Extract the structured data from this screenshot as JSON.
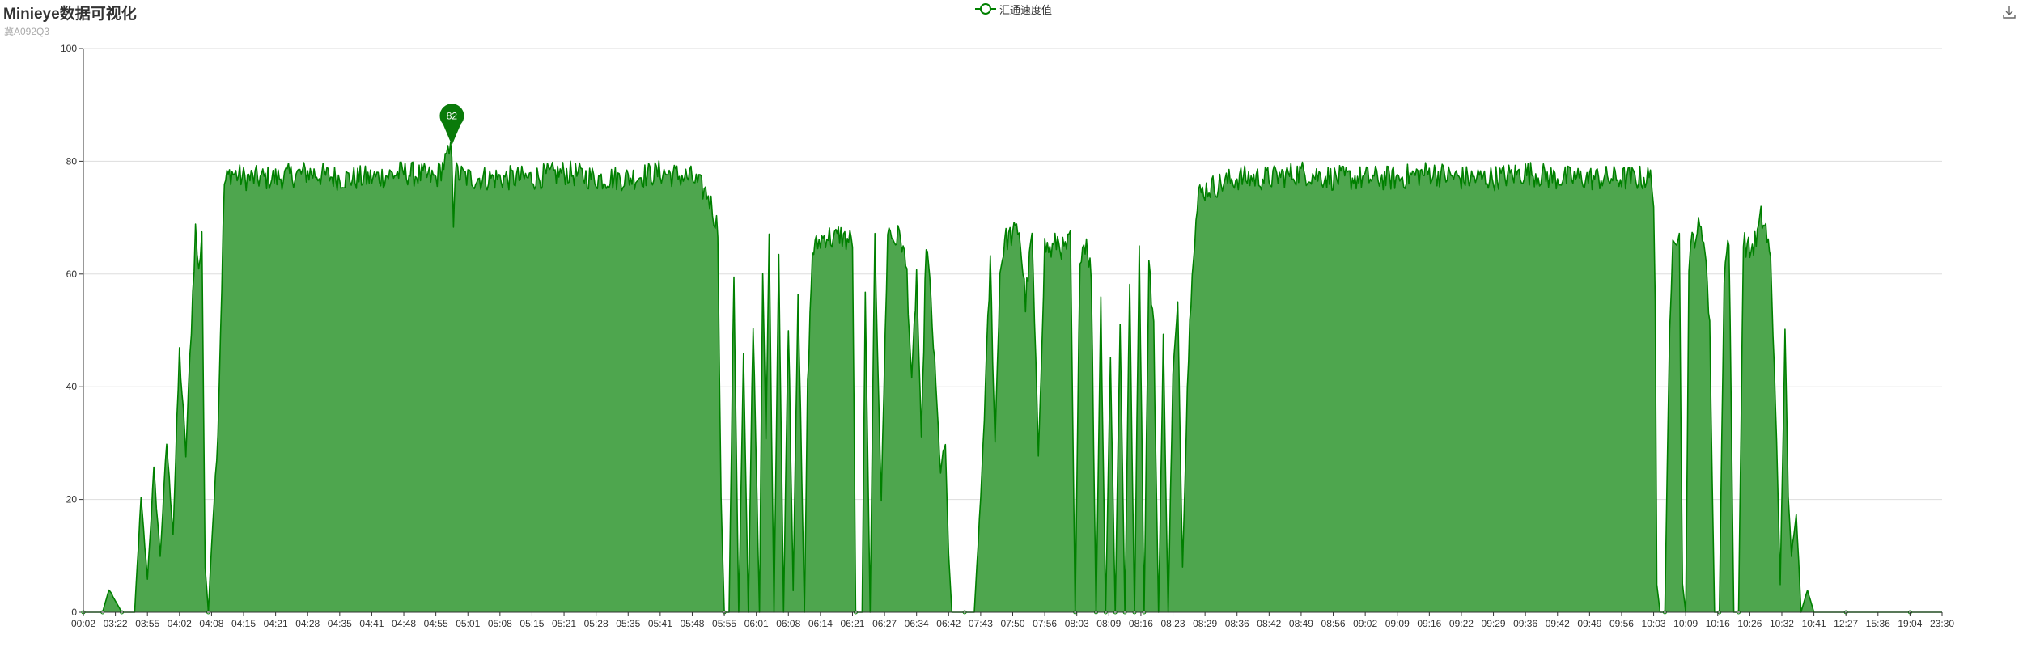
{
  "page": {
    "title": "Minieye数据可视化",
    "subtitle": "冀A092Q3"
  },
  "legend": {
    "label": "汇通速度值"
  },
  "toolbox": {
    "icon": "download-icon"
  },
  "colors": {
    "line": "#008000",
    "area": "#4ea64e",
    "axis": "#333333",
    "grid": "#dddddd",
    "marker": "#0a7a0a"
  },
  "chart_data": {
    "type": "area",
    "title": "Minieye数据可视化",
    "subtitle": "冀A092Q3",
    "xlabel": "",
    "ylabel": "",
    "ylim": [
      0,
      100
    ],
    "yticks": [
      0,
      20,
      40,
      60,
      80,
      100
    ],
    "grid": true,
    "legend_position": "top-center",
    "x_tick_labels": [
      "00:02",
      "03:22",
      "03:55",
      "04:02",
      "04:08",
      "04:15",
      "04:21",
      "04:28",
      "04:35",
      "04:41",
      "04:48",
      "04:55",
      "05:01",
      "05:08",
      "05:15",
      "05:21",
      "05:28",
      "05:35",
      "05:41",
      "05:48",
      "05:55",
      "06:01",
      "06:08",
      "06:14",
      "06:21",
      "06:27",
      "06:34",
      "06:42",
      "07:43",
      "07:50",
      "07:56",
      "08:03",
      "08:09",
      "08:16",
      "08:23",
      "08:29",
      "08:36",
      "08:42",
      "08:49",
      "08:56",
      "09:02",
      "09:09",
      "09:16",
      "09:22",
      "09:29",
      "09:36",
      "09:42",
      "09:49",
      "09:56",
      "10:03",
      "10:09",
      "10:16",
      "10:26",
      "10:32",
      "10:41",
      "12:27",
      "15:36",
      "19:04",
      "23:30"
    ],
    "series": [
      {
        "name": "汇通速度值",
        "profile": [
          [
            0,
            0
          ],
          [
            0.3,
            0
          ],
          [
            0.6,
            0
          ],
          [
            0.8,
            4
          ],
          [
            1.2,
            0
          ],
          [
            1.6,
            0
          ],
          [
            1.8,
            20
          ],
          [
            2.0,
            6
          ],
          [
            2.2,
            25
          ],
          [
            2.4,
            10
          ],
          [
            2.6,
            30
          ],
          [
            2.8,
            14
          ],
          [
            3.0,
            46
          ],
          [
            3.2,
            28
          ],
          [
            3.5,
            68
          ],
          [
            3.6,
            60
          ],
          [
            3.7,
            68
          ],
          [
            3.8,
            8
          ],
          [
            3.9,
            0
          ],
          [
            4.0,
            12
          ],
          [
            4.2,
            32
          ],
          [
            4.4,
            76
          ],
          [
            4.6,
            78
          ],
          [
            5.0,
            77
          ],
          [
            6.0,
            77
          ],
          [
            7.0,
            78
          ],
          [
            8.0,
            77
          ],
          [
            9.0,
            77
          ],
          [
            10.0,
            78
          ],
          [
            11.0,
            77
          ],
          [
            11.5,
            82
          ],
          [
            11.55,
            70
          ],
          [
            11.6,
            78
          ],
          [
            12.0,
            77
          ],
          [
            13.0,
            77
          ],
          [
            14.0,
            77
          ],
          [
            15.0,
            78
          ],
          [
            16.0,
            77
          ],
          [
            17.0,
            77
          ],
          [
            18.0,
            78
          ],
          [
            19.0,
            77
          ],
          [
            19.5,
            74
          ],
          [
            19.8,
            68
          ],
          [
            19.9,
            20
          ],
          [
            20.0,
            0
          ],
          [
            20.15,
            0
          ],
          [
            20.3,
            60
          ],
          [
            20.45,
            0
          ],
          [
            20.6,
            45
          ],
          [
            20.75,
            0
          ],
          [
            20.9,
            52
          ],
          [
            21.1,
            0
          ],
          [
            21.2,
            60
          ],
          [
            21.3,
            30
          ],
          [
            21.4,
            66
          ],
          [
            21.55,
            0
          ],
          [
            21.7,
            64
          ],
          [
            21.85,
            0
          ],
          [
            22.0,
            52
          ],
          [
            22.15,
            4
          ],
          [
            22.3,
            58
          ],
          [
            22.5,
            0
          ],
          [
            22.6,
            40
          ],
          [
            22.75,
            64
          ],
          [
            23.0,
            66
          ],
          [
            23.2,
            67
          ],
          [
            23.4,
            66
          ],
          [
            23.6,
            67
          ],
          [
            23.8,
            66
          ],
          [
            24.0,
            66
          ],
          [
            24.1,
            0
          ],
          [
            24.3,
            0
          ],
          [
            24.4,
            55
          ],
          [
            24.55,
            0
          ],
          [
            24.7,
            66
          ],
          [
            24.9,
            20
          ],
          [
            25.1,
            68
          ],
          [
            25.3,
            66
          ],
          [
            25.5,
            67
          ],
          [
            25.7,
            60
          ],
          [
            25.85,
            40
          ],
          [
            26.0,
            60
          ],
          [
            26.15,
            30
          ],
          [
            26.3,
            66
          ],
          [
            26.45,
            55
          ],
          [
            26.6,
            40
          ],
          [
            26.75,
            25
          ],
          [
            26.9,
            30
          ],
          [
            27.0,
            10
          ],
          [
            27.1,
            0
          ],
          [
            27.5,
            0
          ],
          [
            27.8,
            0
          ],
          [
            28.0,
            20
          ],
          [
            28.15,
            40
          ],
          [
            28.3,
            62
          ],
          [
            28.45,
            30
          ],
          [
            28.6,
            60
          ],
          [
            28.75,
            66
          ],
          [
            29.0,
            67
          ],
          [
            29.2,
            68
          ],
          [
            29.4,
            55
          ],
          [
            29.6,
            67
          ],
          [
            29.8,
            28
          ],
          [
            30.0,
            65
          ],
          [
            30.2,
            64
          ],
          [
            30.4,
            66
          ],
          [
            30.6,
            64
          ],
          [
            30.8,
            66
          ],
          [
            30.95,
            0
          ],
          [
            31.1,
            64
          ],
          [
            31.3,
            66
          ],
          [
            31.45,
            60
          ],
          [
            31.6,
            0
          ],
          [
            31.75,
            55
          ],
          [
            31.9,
            0
          ],
          [
            32.05,
            45
          ],
          [
            32.2,
            0
          ],
          [
            32.35,
            52
          ],
          [
            32.5,
            0
          ],
          [
            32.65,
            58
          ],
          [
            32.8,
            0
          ],
          [
            32.95,
            66
          ],
          [
            33.1,
            0
          ],
          [
            33.25,
            62
          ],
          [
            33.4,
            50
          ],
          [
            33.55,
            0
          ],
          [
            33.7,
            48
          ],
          [
            33.85,
            0
          ],
          [
            34.0,
            42
          ],
          [
            34.15,
            54
          ],
          [
            34.3,
            8
          ],
          [
            34.45,
            40
          ],
          [
            34.6,
            62
          ],
          [
            34.8,
            74
          ],
          [
            35.0,
            75
          ],
          [
            35.5,
            76
          ],
          [
            36.0,
            77
          ],
          [
            37.0,
            77
          ],
          [
            38.0,
            78
          ],
          [
            39.0,
            77
          ],
          [
            40.0,
            77
          ],
          [
            41.0,
            77
          ],
          [
            42.0,
            78
          ],
          [
            43.0,
            77
          ],
          [
            44.0,
            77
          ],
          [
            45.0,
            78
          ],
          [
            46.0,
            77
          ],
          [
            47.0,
            77
          ],
          [
            48.0,
            77
          ],
          [
            48.9,
            77
          ],
          [
            49.0,
            74
          ],
          [
            49.05,
            55
          ],
          [
            49.1,
            5
          ],
          [
            49.2,
            0
          ],
          [
            49.35,
            0
          ],
          [
            49.5,
            50
          ],
          [
            49.6,
            68
          ],
          [
            49.8,
            66
          ],
          [
            49.9,
            5
          ],
          [
            50.0,
            0
          ],
          [
            50.1,
            60
          ],
          [
            50.2,
            66
          ],
          [
            50.4,
            68
          ],
          [
            50.6,
            66
          ],
          [
            50.75,
            50
          ],
          [
            50.9,
            0
          ],
          [
            51.05,
            0
          ],
          [
            51.2,
            60
          ],
          [
            51.35,
            67
          ],
          [
            51.5,
            0
          ],
          [
            51.65,
            0
          ],
          [
            51.8,
            66
          ],
          [
            52.0,
            64
          ],
          [
            52.2,
            66
          ],
          [
            52.35,
            70
          ],
          [
            52.5,
            68
          ],
          [
            52.65,
            62
          ],
          [
            52.8,
            38
          ],
          [
            52.95,
            5
          ],
          [
            53.1,
            50
          ],
          [
            53.2,
            20
          ],
          [
            53.3,
            10
          ],
          [
            53.45,
            18
          ],
          [
            53.6,
            0
          ],
          [
            53.8,
            4
          ],
          [
            54.0,
            0
          ],
          [
            55.0,
            0
          ],
          [
            56.0,
            0
          ],
          [
            57.0,
            0
          ],
          [
            58.0,
            0
          ]
        ]
      }
    ],
    "annotations": [
      {
        "type": "max-point",
        "x_index": 11.5,
        "value": 82,
        "label": "82"
      }
    ]
  }
}
